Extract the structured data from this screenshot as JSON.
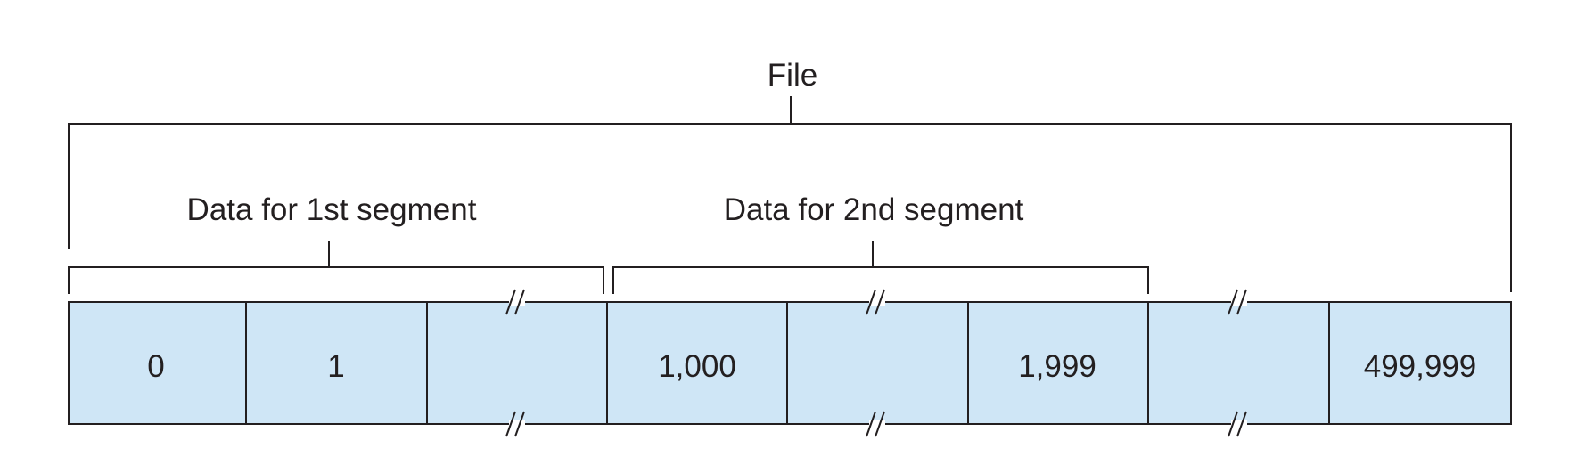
{
  "file_label": "File",
  "segments": [
    {
      "label": "Data for 1st segment"
    },
    {
      "label": "Data for 2nd segment"
    }
  ],
  "bytes": [
    {
      "text": "0",
      "cut": false
    },
    {
      "text": "1",
      "cut": false
    },
    {
      "text": "",
      "cut": true
    },
    {
      "text": "1,000",
      "cut": false
    },
    {
      "text": "",
      "cut": true
    },
    {
      "text": "1,999",
      "cut": false
    },
    {
      "text": "",
      "cut": true
    },
    {
      "text": "499,999",
      "cut": false
    }
  ],
  "colors": {
    "cell_fill": "#cfe6f6",
    "stroke": "#231f20",
    "text": "#231f20"
  }
}
